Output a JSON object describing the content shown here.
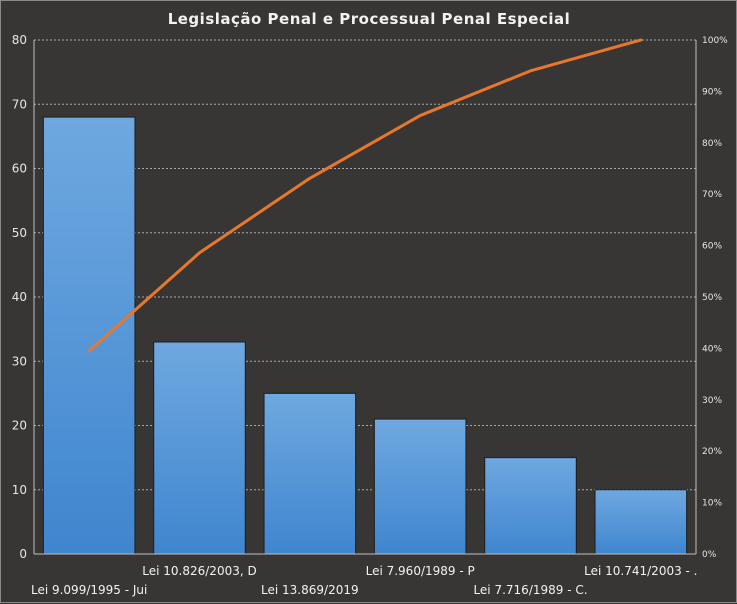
{
  "chart_data": {
    "type": "bar",
    "title": "Legislação Penal e Processual Penal Especial",
    "categories": [
      "Lei 9.099/1995  - Jui",
      "Lei 10.826/2003,  D",
      "Lei 13.869/2019",
      "Lei 7.960/1989  - P",
      "Lei 7.716/1989  - C.",
      "Lei 10.741/2003  -  ."
    ],
    "series": [
      {
        "type": "bar",
        "values": [
          68,
          33,
          25,
          21,
          15,
          10
        ]
      },
      {
        "type": "line",
        "axis": "secondary",
        "values": [
          39.5,
          58.6,
          73.1,
          85.3,
          94.0,
          100.0
        ]
      }
    ],
    "ylim": [
      0,
      80
    ],
    "yticks": [
      "0",
      "10",
      "20",
      "30",
      "40",
      "50",
      "60",
      "70",
      "80"
    ],
    "y2lim": [
      0,
      100
    ],
    "y2ticks": [
      "0%",
      "10%",
      "20%",
      "30%",
      "40%",
      "50%",
      "60%",
      "70%",
      "80%",
      "90%",
      "100%"
    ],
    "grid": true,
    "legend": "none",
    "colors": {
      "bar_top": "#6fa8e0",
      "bar_bottom": "#3f86cf",
      "line": "#e8772e",
      "grid": "#a9a9a9",
      "background": "#383634"
    }
  }
}
